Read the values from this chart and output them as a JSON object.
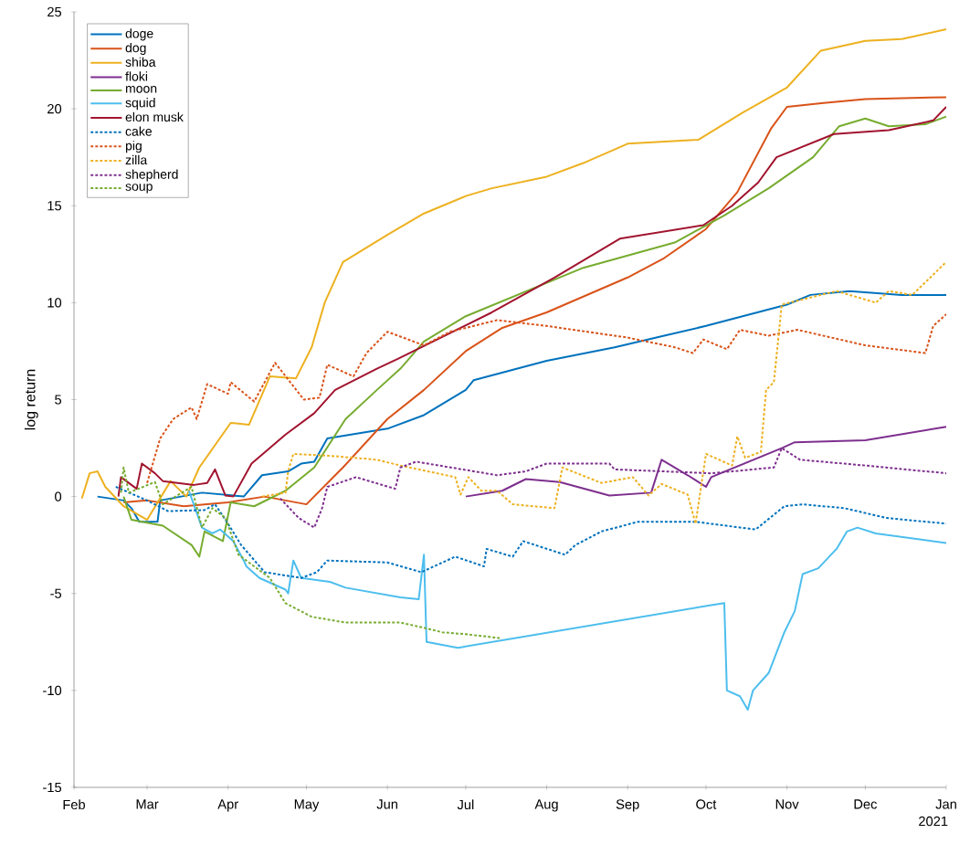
{
  "chart_data": {
    "type": "line",
    "ylabel": "log return",
    "xlim": [
      "2021-02-01",
      "2022-01-01"
    ],
    "ylim": [
      -15,
      25
    ],
    "yticks": [
      -15,
      -10,
      -5,
      0,
      5,
      10,
      15,
      20,
      25
    ],
    "xticks": [
      {
        "value": "2021-02-01",
        "label": "Feb"
      },
      {
        "value": "2021-03-01",
        "label": "Mar"
      },
      {
        "value": "2021-04-01",
        "label": "Apr"
      },
      {
        "value": "2021-05-01",
        "label": "May"
      },
      {
        "value": "2021-06-01",
        "label": "Jun"
      },
      {
        "value": "2021-07-01",
        "label": "Jul"
      },
      {
        "value": "2021-08-01",
        "label": "Aug"
      },
      {
        "value": "2021-09-01",
        "label": "Sep"
      },
      {
        "value": "2021-10-01",
        "label": "Oct"
      },
      {
        "value": "2021-11-01",
        "label": "Nov"
      },
      {
        "value": "2021-12-01",
        "label": "Dec"
      },
      {
        "value": "2022-01-01",
        "label": "Jan"
      }
    ],
    "annotations": [
      "2021"
    ],
    "legend": "top left",
    "grid": false,
    "series": [
      {
        "name": "doge",
        "color": "#0072bd",
        "line_style": "solid",
        "x": [
          "2021-02-10",
          "2021-02-20",
          "2021-02-23",
          "2021-02-26",
          "2021-03-05",
          "2021-03-06",
          "2021-03-22",
          "2021-04-07",
          "2021-04-14",
          "2021-04-24",
          "2021-04-29",
          "2021-05-04",
          "2021-05-09",
          "2021-06-01",
          "2021-06-15",
          "2021-07-01",
          "2021-07-04",
          "2021-08-01",
          "2021-08-27",
          "2021-09-15",
          "2021-10-01",
          "2021-11-01",
          "2021-11-10",
          "2021-11-25",
          "2021-12-15",
          "2022-01-01"
        ],
        "values": [
          0,
          -0.2,
          -0.6,
          -1.3,
          -1.3,
          -0.2,
          0.2,
          0,
          1.1,
          1.3,
          1.7,
          1.8,
          3.0,
          3.5,
          4.2,
          5.5,
          6.0,
          7.0,
          7.7,
          8.3,
          8.8,
          9.9,
          10.4,
          10.6,
          10.4,
          10.4
        ]
      },
      {
        "name": "dog",
        "color": "#d95319",
        "line_style": "solid",
        "x": [
          "2021-02-20",
          "2021-03-01",
          "2021-03-15",
          "2021-04-01",
          "2021-04-15",
          "2021-05-01",
          "2021-05-15",
          "2021-06-01",
          "2021-06-15",
          "2021-07-01",
          "2021-07-15",
          "2021-08-01",
          "2021-09-01",
          "2021-09-15",
          "2021-10-01",
          "2021-10-13",
          "2021-10-26",
          "2021-11-01",
          "2021-11-15",
          "2021-12-01",
          "2022-01-01"
        ],
        "values": [
          -0.3,
          -0.2,
          -0.5,
          -0.3,
          0,
          -0.4,
          1.5,
          4.0,
          5.5,
          7.5,
          8.7,
          9.5,
          11.3,
          12.3,
          13.8,
          15.7,
          19.0,
          20.1,
          20.3,
          20.5,
          20.6
        ]
      },
      {
        "name": "shiba",
        "color": "#edb120",
        "line_style": "solid",
        "x": [
          "2021-02-04",
          "2021-02-07",
          "2021-02-10",
          "2021-02-13",
          "2021-02-20",
          "2021-03-01",
          "2021-03-10",
          "2021-03-16",
          "2021-03-21",
          "2021-04-02",
          "2021-04-09",
          "2021-04-17",
          "2021-04-27",
          "2021-05-03",
          "2021-05-08",
          "2021-05-15",
          "2021-06-01",
          "2021-06-15",
          "2021-07-01",
          "2021-07-11",
          "2021-08-01",
          "2021-08-15",
          "2021-09-01",
          "2021-09-28",
          "2021-10-15",
          "2021-11-01",
          "2021-11-14",
          "2021-12-01",
          "2021-12-15",
          "2022-01-01"
        ],
        "values": [
          -0.1,
          1.2,
          1.3,
          0.5,
          -0.5,
          -1.2,
          0.8,
          0,
          1.5,
          3.8,
          3.7,
          6.2,
          6.1,
          7.7,
          10.0,
          12.1,
          13.5,
          14.6,
          15.5,
          15.9,
          16.5,
          17.2,
          18.2,
          18.4,
          19.8,
          21.1,
          23.0,
          23.5,
          23.6,
          24.1
        ]
      },
      {
        "name": "floki",
        "color": "#7e2f8e",
        "line_style": "solid",
        "x": [
          "2021-07-01",
          "2021-07-15",
          "2021-07-24",
          "2021-08-06",
          "2021-08-25",
          "2021-09-10",
          "2021-09-14",
          "2021-09-24",
          "2021-10-01",
          "2021-10-03",
          "2021-10-30",
          "2021-11-04",
          "2021-12-01",
          "2022-01-01"
        ],
        "values": [
          0.0,
          0.3,
          0.9,
          0.75,
          0.05,
          0.2,
          1.9,
          1.1,
          0.5,
          1.0,
          2.5,
          2.8,
          2.9,
          3.6
        ]
      },
      {
        "name": "moon",
        "color": "#77ac30",
        "line_style": "solid",
        "x": [
          "2021-02-20",
          "2021-02-23",
          "2021-03-07",
          "2021-03-18",
          "2021-03-21",
          "2021-03-23",
          "2021-03-30",
          "2021-04-02",
          "2021-04-11",
          "2021-04-23",
          "2021-05-04",
          "2021-05-16",
          "2021-05-28",
          "2021-06-06",
          "2021-06-15",
          "2021-07-01",
          "2021-08-15",
          "2021-09-19",
          "2021-10-08",
          "2021-10-25",
          "2021-11-11",
          "2021-11-21",
          "2021-12-01",
          "2021-12-10",
          "2021-12-24",
          "2022-01-01"
        ],
        "values": [
          0,
          -1.2,
          -1.5,
          -2.5,
          -3.1,
          -1.8,
          -2.3,
          -0.3,
          -0.5,
          0.3,
          1.5,
          4.0,
          5.5,
          6.6,
          8.0,
          9.3,
          11.8,
          13.1,
          14.5,
          15.9,
          17.5,
          19.1,
          19.5,
          19.1,
          19.2,
          19.6
        ]
      },
      {
        "name": "squid",
        "color": "#4dbeee",
        "line_style": "solid",
        "x": [
          "2021-03-17",
          "2021-03-22",
          "2021-03-26",
          "2021-03-29",
          "2021-04-03",
          "2021-04-07",
          "2021-04-08",
          "2021-04-13",
          "2021-04-23",
          "2021-04-24",
          "2021-04-26",
          "2021-04-29",
          "2021-05-10",
          "2021-05-16",
          "2021-06-06",
          "2021-06-13",
          "2021-06-15",
          "2021-06-16",
          "2021-06-28",
          "2021-10-03",
          "2021-10-08",
          "2021-10-09",
          "2021-10-14",
          "2021-10-17",
          "2021-10-19",
          "2021-10-25",
          "2021-10-31",
          "2021-11-04",
          "2021-11-07",
          "2021-11-13",
          "2021-11-20",
          "2021-11-24",
          "2021-11-28",
          "2021-12-05",
          "2022-01-01"
        ],
        "values": [
          0.3,
          -1.6,
          -1.9,
          -1.7,
          -2.3,
          -3.3,
          -3.6,
          -4.2,
          -4.8,
          -5.0,
          -3.3,
          -4.2,
          -4.4,
          -4.7,
          -5.2,
          -5.3,
          -3.0,
          -7.5,
          -7.8,
          -5.6,
          -5.5,
          -10.0,
          -10.3,
          -11.0,
          -10.0,
          -9.1,
          -7.0,
          -5.9,
          -4.0,
          -3.7,
          -2.7,
          -1.8,
          -1.6,
          -1.9,
          -2.4
        ]
      },
      {
        "name": "elon musk",
        "color": "#a2142f",
        "line_style": "solid",
        "x": [
          "2021-02-18",
          "2021-02-19",
          "2021-02-25",
          "2021-02-27",
          "2021-03-04",
          "2021-03-07",
          "2021-03-19",
          "2021-03-24",
          "2021-03-27",
          "2021-03-31",
          "2021-04-03",
          "2021-04-10",
          "2021-04-23",
          "2021-05-04",
          "2021-05-12",
          "2021-05-28",
          "2021-06-05",
          "2021-07-11",
          "2021-08-04",
          "2021-08-29",
          "2021-09-30",
          "2021-10-11",
          "2021-10-21",
          "2021-10-28",
          "2021-11-19",
          "2021-12-10",
          "2021-12-27",
          "2022-01-01"
        ],
        "values": [
          0,
          1.0,
          0.4,
          1.7,
          1.2,
          0.8,
          0.6,
          0.7,
          1.4,
          0.05,
          0,
          1.7,
          3.2,
          4.3,
          5.5,
          6.6,
          7.1,
          9.5,
          11.3,
          13.3,
          14.0,
          15.0,
          16.2,
          17.5,
          18.7,
          18.9,
          19.4,
          20.1
        ]
      },
      {
        "name": "cake",
        "color": "#0072bd",
        "line_style": "dotted",
        "x": [
          "2021-02-17",
          "2021-03-01",
          "2021-03-09",
          "2021-03-23",
          "2021-03-27",
          "2021-04-01",
          "2021-04-06",
          "2021-04-15",
          "2021-04-29",
          "2021-05-05",
          "2021-05-09",
          "2021-06-01",
          "2021-06-14",
          "2021-06-27",
          "2021-07-08",
          "2021-07-09",
          "2021-07-19",
          "2021-07-23",
          "2021-08-08",
          "2021-08-12",
          "2021-08-22",
          "2021-09-05",
          "2021-09-27",
          "2021-10-20",
          "2021-10-31",
          "2021-11-07",
          "2021-11-23",
          "2021-12-09",
          "2022-01-01"
        ],
        "values": [
          0.5,
          -0.2,
          -0.75,
          -0.7,
          -0.4,
          -1.4,
          -2.5,
          -3.9,
          -4.2,
          -3.9,
          -3.3,
          -3.4,
          -3.9,
          -3.1,
          -3.6,
          -2.7,
          -3.1,
          -2.3,
          -3.0,
          -2.5,
          -1.8,
          -1.3,
          -1.3,
          -1.7,
          -0.5,
          -0.4,
          -0.6,
          -1.1,
          -1.4
        ]
      },
      {
        "name": "pig",
        "color": "#d95319",
        "line_style": "dotted",
        "x": [
          "2021-03-01",
          "2021-03-06",
          "2021-03-11",
          "2021-03-18",
          "2021-03-20",
          "2021-03-24",
          "2021-04-01",
          "2021-04-02",
          "2021-04-11",
          "2021-04-19",
          "2021-04-30",
          "2021-05-06",
          "2021-05-09",
          "2021-05-19",
          "2021-05-24",
          "2021-06-01",
          "2021-06-15",
          "2021-06-25",
          "2021-07-13",
          "2021-08-01",
          "2021-09-01",
          "2021-09-19",
          "2021-09-26",
          "2021-09-30",
          "2021-10-09",
          "2021-10-14",
          "2021-10-25",
          "2021-11-05",
          "2021-12-01",
          "2021-12-24",
          "2021-12-27",
          "2022-01-01"
        ],
        "values": [
          0.7,
          3.0,
          4.0,
          4.6,
          4.0,
          5.8,
          5.3,
          5.9,
          4.9,
          6.9,
          5.0,
          5.1,
          6.8,
          6.2,
          7.4,
          8.5,
          7.8,
          8.5,
          9.1,
          8.8,
          8.2,
          7.7,
          7.4,
          8.1,
          7.6,
          8.6,
          8.3,
          8.6,
          7.8,
          7.4,
          8.8,
          9.4
        ]
      },
      {
        "name": "zilla",
        "color": "#edb120",
        "line_style": "dotted",
        "x": [
          "2021-04-14",
          "2021-04-23",
          "2021-04-24",
          "2021-04-26",
          "2021-05-10",
          "2021-05-28",
          "2021-06-06",
          "2021-06-27",
          "2021-06-29",
          "2021-07-02",
          "2021-07-07",
          "2021-07-13",
          "2021-07-19",
          "2021-08-04",
          "2021-08-07",
          "2021-08-22",
          "2021-09-03",
          "2021-09-09",
          "2021-09-14",
          "2021-09-24",
          "2021-09-27",
          "2021-10-01",
          "2021-10-11",
          "2021-10-13",
          "2021-10-16",
          "2021-10-22",
          "2021-10-24",
          "2021-10-27",
          "2021-10-30",
          "2021-11-20",
          "2021-12-05",
          "2021-12-10",
          "2021-12-19",
          "2022-01-01"
        ],
        "values": [
          0,
          0.2,
          1.3,
          2.2,
          2.1,
          1.9,
          1.6,
          1.0,
          0.1,
          1.0,
          0.3,
          0.3,
          -0.4,
          -0.6,
          1.5,
          0.7,
          1.0,
          0.05,
          0.65,
          0.1,
          -1.4,
          2.2,
          1.6,
          3.1,
          2.0,
          2.3,
          5.5,
          5.9,
          9.9,
          10.6,
          10.0,
          10.6,
          10.4,
          12.1
        ]
      },
      {
        "name": "shepherd",
        "color": "#7e2f8e",
        "line_style": "dotted",
        "x": [
          "2021-04-21",
          "2021-04-28",
          "2021-05-04",
          "2021-05-07",
          "2021-05-09",
          "2021-05-20",
          "2021-06-04",
          "2021-06-06",
          "2021-06-12",
          "2021-07-13",
          "2021-07-24",
          "2021-08-01",
          "2021-08-25",
          "2021-08-27",
          "2021-10-03",
          "2021-10-27",
          "2021-10-30",
          "2021-11-06",
          "2021-12-01",
          "2022-01-01"
        ],
        "values": [
          -0.1,
          -1.1,
          -1.6,
          -0.6,
          0.5,
          1.0,
          0.4,
          1.5,
          1.8,
          1.1,
          1.3,
          1.7,
          1.7,
          1.4,
          1.2,
          1.5,
          2.5,
          1.9,
          1.6,
          1.2
        ]
      },
      {
        "name": "soup",
        "color": "#77ac30",
        "line_style": "dotted",
        "x": [
          "2021-02-19",
          "2021-02-20",
          "2021-02-22",
          "2021-03-04",
          "2021-03-07",
          "2021-03-18",
          "2021-03-22",
          "2021-03-26",
          "2021-03-31",
          "2021-04-05",
          "2021-04-17",
          "2021-04-23",
          "2021-05-03",
          "2021-05-16",
          "2021-06-06",
          "2021-06-16",
          "2021-06-22",
          "2021-07-01",
          "2021-07-14"
        ],
        "values": [
          0.2,
          1.5,
          0.2,
          0.75,
          -0.4,
          0.5,
          -1.6,
          -0.6,
          -1.1,
          -3.0,
          -4.2,
          -5.5,
          -6.2,
          -6.5,
          -6.5,
          -6.8,
          -7.0,
          -7.1,
          -7.3
        ]
      }
    ]
  }
}
